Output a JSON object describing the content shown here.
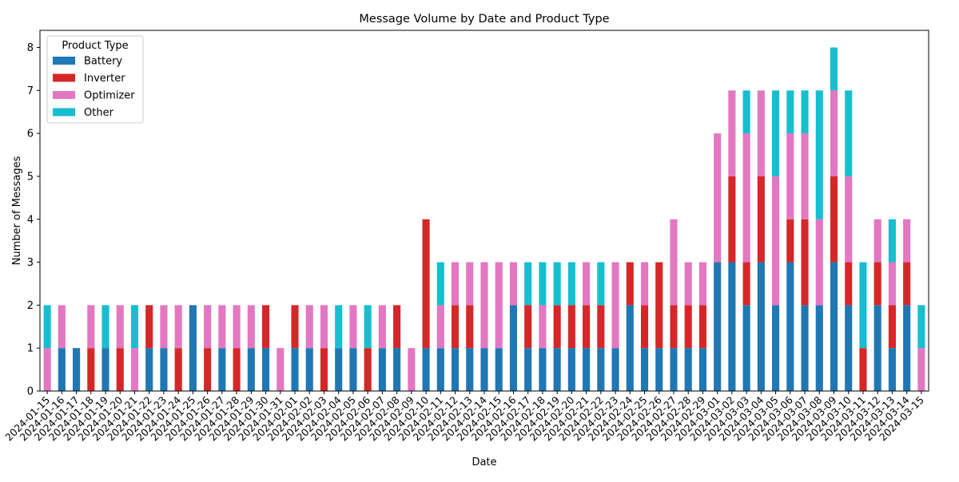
{
  "chart_data": {
    "type": "bar",
    "stacked": true,
    "title": "Message Volume by Date and Product Type",
    "xlabel": "Date",
    "ylabel": "Number of Messages",
    "ylim": [
      0,
      8.4
    ],
    "yticks": [
      0,
      1,
      2,
      3,
      4,
      5,
      6,
      7,
      8
    ],
    "grid": false,
    "legend": {
      "title": "Product Type",
      "placement": "top-left"
    },
    "categories": [
      "2024-01-15",
      "2024-01-16",
      "2024-01-17",
      "2024-01-18",
      "2024-01-19",
      "2024-01-20",
      "2024-01-21",
      "2024-01-22",
      "2024-01-23",
      "2024-01-24",
      "2024-01-25",
      "2024-01-26",
      "2024-01-27",
      "2024-01-28",
      "2024-01-29",
      "2024-01-30",
      "2024-01-31",
      "2024-02-01",
      "2024-02-02",
      "2024-02-03",
      "2024-02-04",
      "2024-02-05",
      "2024-02-06",
      "2024-02-07",
      "2024-02-08",
      "2024-02-09",
      "2024-02-10",
      "2024-02-11",
      "2024-02-12",
      "2024-02-13",
      "2024-02-14",
      "2024-02-15",
      "2024-02-16",
      "2024-02-17",
      "2024-02-18",
      "2024-02-19",
      "2024-02-20",
      "2024-02-21",
      "2024-02-22",
      "2024-02-23",
      "2024-02-24",
      "2024-02-25",
      "2024-02-26",
      "2024-02-27",
      "2024-02-28",
      "2024-02-29",
      "2024-03-01",
      "2024-03-02",
      "2024-03-03",
      "2024-03-04",
      "2024-03-05",
      "2024-03-06",
      "2024-03-07",
      "2024-03-08",
      "2024-03-09",
      "2024-03-10",
      "2024-03-11",
      "2024-03-12",
      "2024-03-13",
      "2024-03-14",
      "2024-03-15"
    ],
    "series": [
      {
        "name": "Battery",
        "color": "#1f77b4",
        "values": [
          0,
          1,
          1,
          0,
          1,
          0,
          0,
          1,
          1,
          0,
          2,
          0,
          1,
          0,
          1,
          1,
          0,
          1,
          1,
          0,
          1,
          1,
          0,
          1,
          1,
          0,
          1,
          1,
          1,
          1,
          1,
          1,
          2,
          1,
          1,
          1,
          1,
          1,
          1,
          1,
          2,
          1,
          1,
          1,
          1,
          1,
          3,
          3,
          2,
          3,
          2,
          3,
          2,
          2,
          3,
          2,
          0,
          2,
          1,
          2,
          0
        ]
      },
      {
        "name": "Inverter",
        "color": "#d62728",
        "values": [
          0,
          0,
          0,
          1,
          0,
          1,
          0,
          1,
          0,
          1,
          0,
          1,
          0,
          1,
          0,
          1,
          0,
          1,
          0,
          1,
          0,
          0,
          1,
          0,
          1,
          0,
          3,
          0,
          1,
          1,
          0,
          0,
          0,
          1,
          0,
          1,
          1,
          1,
          1,
          0,
          1,
          1,
          2,
          1,
          1,
          1,
          0,
          2,
          1,
          2,
          0,
          1,
          2,
          0,
          2,
          1,
          1,
          1,
          1,
          1,
          0
        ]
      },
      {
        "name": "Optimizer",
        "color": "#e377c2",
        "values": [
          1,
          1,
          0,
          1,
          0,
          1,
          1,
          0,
          1,
          1,
          0,
          1,
          1,
          1,
          1,
          0,
          1,
          0,
          1,
          1,
          0,
          1,
          0,
          1,
          0,
          1,
          0,
          1,
          1,
          1,
          2,
          2,
          1,
          0,
          1,
          0,
          0,
          1,
          0,
          2,
          0,
          1,
          0,
          2,
          1,
          1,
          3,
          2,
          3,
          2,
          3,
          2,
          2,
          2,
          2,
          2,
          0,
          1,
          1,
          1,
          1
        ]
      },
      {
        "name": "Other",
        "color": "#17becf",
        "values": [
          1,
          0,
          0,
          0,
          1,
          0,
          1,
          0,
          0,
          0,
          0,
          0,
          0,
          0,
          0,
          0,
          0,
          0,
          0,
          0,
          1,
          0,
          1,
          0,
          0,
          0,
          0,
          1,
          0,
          0,
          0,
          0,
          0,
          1,
          1,
          1,
          1,
          0,
          1,
          0,
          0,
          0,
          0,
          0,
          0,
          0,
          0,
          0,
          1,
          0,
          2,
          1,
          1,
          3,
          1,
          2,
          2,
          0,
          1,
          0,
          1
        ]
      }
    ]
  }
}
